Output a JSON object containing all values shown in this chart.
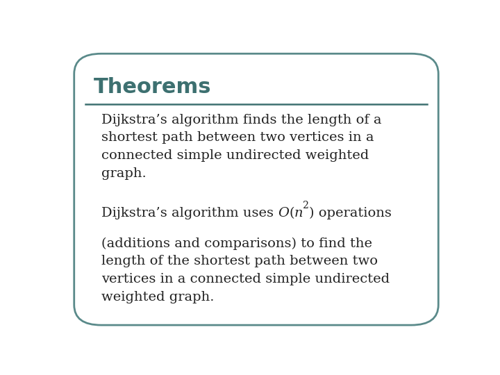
{
  "title": "Theorems",
  "title_color": "#3d7070",
  "title_fontsize": 22,
  "body_fontsize": 14,
  "background_color": "#ffffff",
  "border_color": "#5a8a8a",
  "line_color": "#3d7070",
  "text_color": "#222222",
  "paragraph1": "Dijkstra’s algorithm finds the length of a\nshortest path between two vertices in a\nconnected simple undirected weighted\ngraph.",
  "remaining_p2": "(additions and comparisons) to find the\nlength of the shortest path between two\nvertices in a connected simple undirected\nweighted graph.",
  "fig_width": 7.2,
  "fig_height": 5.4,
  "dpi": 100
}
